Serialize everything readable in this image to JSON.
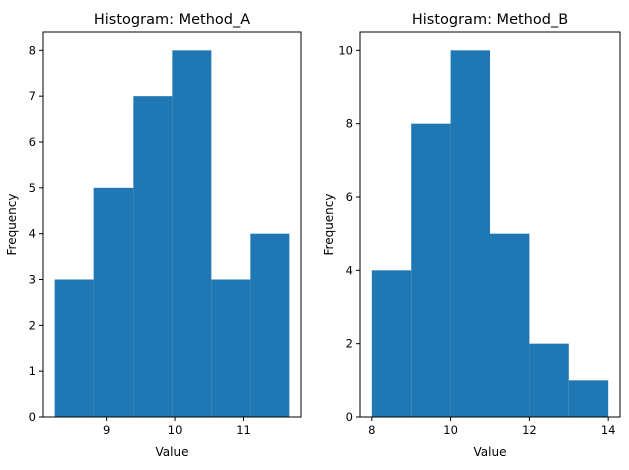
{
  "chart_data": [
    {
      "type": "bar",
      "title": "Histogram: Method_A",
      "xlabel": "Value",
      "ylabel": "Frequency",
      "bins": [
        {
          "x0": 8.24,
          "x1": 8.81,
          "value": 3
        },
        {
          "x0": 8.81,
          "x1": 9.39,
          "value": 5
        },
        {
          "x0": 9.39,
          "x1": 9.96,
          "value": 7
        },
        {
          "x0": 9.96,
          "x1": 10.53,
          "value": 8
        },
        {
          "x0": 10.53,
          "x1": 11.1,
          "value": 3
        },
        {
          "x0": 11.1,
          "x1": 11.67,
          "value": 4
        }
      ],
      "xlim": [
        8.07,
        11.84
      ],
      "ylim": [
        0,
        8.4
      ],
      "xticks": [
        9,
        10,
        11
      ],
      "yticks": [
        0,
        1,
        2,
        3,
        4,
        5,
        6,
        7,
        8
      ],
      "bar_color": "#1f77b4",
      "grid": false
    },
    {
      "type": "bar",
      "title": "Histogram: Method_B",
      "xlabel": "Value",
      "ylabel": "Frequency",
      "bins": [
        {
          "x0": 8,
          "x1": 9,
          "value": 4
        },
        {
          "x0": 9,
          "x1": 10,
          "value": 8
        },
        {
          "x0": 10,
          "x1": 11,
          "value": 10
        },
        {
          "x0": 11,
          "x1": 12,
          "value": 5
        },
        {
          "x0": 12,
          "x1": 13,
          "value": 2
        },
        {
          "x0": 13,
          "x1": 14,
          "value": 1
        }
      ],
      "xlim": [
        7.7,
        14.3
      ],
      "ylim": [
        0,
        10.5
      ],
      "xticks": [
        8,
        10,
        12,
        14
      ],
      "yticks": [
        0,
        2,
        4,
        6,
        8,
        10
      ],
      "bar_color": "#1f77b4",
      "grid": false
    }
  ]
}
